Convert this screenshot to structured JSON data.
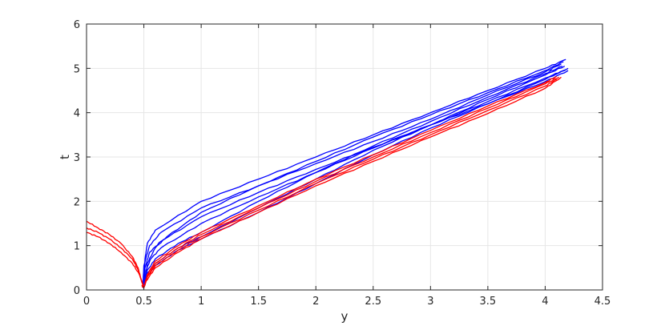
{
  "chart_data": {
    "type": "line",
    "title": "",
    "xlabel": "y",
    "ylabel": "t",
    "xlim": [
      0,
      4.5
    ],
    "ylim": [
      0,
      6
    ],
    "xticks": [
      "0",
      "0.5",
      "1",
      "1.5",
      "2",
      "2.5",
      "3",
      "3.5",
      "4",
      "4.5"
    ],
    "yticks": [
      "0",
      "1",
      "2",
      "3",
      "4",
      "5",
      "6"
    ],
    "grid": true,
    "colors": {
      "blue": "#0000ff",
      "red": "#ff0000",
      "grid": "#e6e6e6",
      "axis": "#262626"
    },
    "series": [
      {
        "color": "blue",
        "x": [
          0.5,
          0.51,
          0.55,
          0.65,
          1.0,
          1.5,
          2.0,
          2.5,
          3.0,
          3.5,
          4.0,
          4.2
        ],
        "y": [
          0.05,
          0.5,
          0.85,
          1.1,
          1.65,
          2.2,
          2.72,
          3.22,
          3.72,
          4.2,
          4.7,
          4.95
        ]
      },
      {
        "color": "blue",
        "x": [
          0.5,
          0.52,
          0.56,
          0.65,
          1.0,
          1.5,
          2.0,
          2.5,
          3.0,
          3.5,
          4.0,
          4.18
        ],
        "y": [
          0.05,
          0.45,
          0.7,
          0.95,
          1.5,
          2.1,
          2.65,
          3.2,
          3.72,
          4.25,
          4.78,
          4.97
        ]
      },
      {
        "color": "blue",
        "x": [
          0.5,
          0.52,
          0.6,
          0.8,
          1.0,
          1.5,
          2.0,
          2.5,
          3.0,
          3.5,
          4.0,
          4.15
        ],
        "y": [
          0.05,
          0.4,
          0.7,
          1.05,
          1.3,
          2.0,
          2.65,
          3.25,
          3.8,
          4.35,
          4.88,
          5.05
        ]
      },
      {
        "color": "blue",
        "x": [
          0.5,
          0.52,
          0.6,
          0.8,
          1.0,
          1.5,
          2.0,
          2.5,
          3.0,
          3.5,
          4.0,
          4.17
        ],
        "y": [
          0.05,
          0.35,
          0.6,
          0.95,
          1.2,
          1.85,
          2.5,
          3.15,
          3.72,
          4.3,
          4.85,
          5.05
        ]
      },
      {
        "color": "blue",
        "x": [
          0.49,
          0.5,
          0.55,
          0.65,
          1.0,
          1.5,
          2.0,
          2.5,
          3.0,
          3.5,
          4.0,
          4.14
        ],
        "y": [
          0.05,
          0.55,
          1.0,
          1.3,
          1.85,
          2.35,
          2.85,
          3.35,
          3.85,
          4.4,
          4.92,
          5.1
        ]
      },
      {
        "color": "blue",
        "x": [
          0.51,
          0.53,
          0.6,
          0.7,
          1.0,
          1.5,
          2.0,
          2.5,
          3.0,
          3.5,
          4.0,
          4.16
        ],
        "y": [
          0.1,
          0.6,
          0.95,
          1.2,
          1.75,
          2.35,
          2.9,
          3.45,
          3.95,
          4.45,
          4.95,
          5.15
        ]
      },
      {
        "color": "blue",
        "x": [
          0.5,
          0.51,
          0.53,
          0.6,
          1.0,
          1.5,
          2.0,
          2.5,
          3.0,
          3.5,
          4.0,
          4.18
        ],
        "y": [
          0.05,
          0.7,
          1.05,
          1.35,
          2.0,
          2.5,
          3.0,
          3.5,
          4.0,
          4.5,
          5.0,
          5.2
        ]
      },
      {
        "color": "blue",
        "x": [
          0.5,
          0.53,
          0.6,
          0.8,
          1.0,
          1.5,
          2.0,
          2.5,
          3.0,
          3.5,
          4.0,
          4.2
        ],
        "y": [
          0.05,
          0.3,
          0.55,
          0.9,
          1.15,
          1.75,
          2.4,
          3.05,
          3.65,
          4.2,
          4.75,
          5.0
        ]
      },
      {
        "color": "red",
        "x": [
          0.0,
          0.1,
          0.2,
          0.3,
          0.4,
          0.45,
          0.48,
          0.5,
          0.52,
          0.6,
          0.8,
          1.0,
          1.5,
          2.0,
          2.5,
          3.0,
          3.5,
          4.0,
          4.1
        ],
        "y": [
          1.55,
          1.4,
          1.25,
          1.05,
          0.75,
          0.5,
          0.2,
          0.05,
          0.25,
          0.55,
          0.9,
          1.2,
          1.8,
          2.4,
          2.95,
          3.5,
          4.05,
          4.6,
          4.75
        ]
      },
      {
        "color": "red",
        "x": [
          0.0,
          0.1,
          0.2,
          0.3,
          0.4,
          0.45,
          0.48,
          0.5,
          0.53,
          0.6,
          0.8,
          1.0,
          1.5,
          2.0,
          2.5,
          3.0,
          3.5,
          4.0,
          4.12
        ],
        "y": [
          1.4,
          1.3,
          1.15,
          0.95,
          0.7,
          0.45,
          0.2,
          0.05,
          0.3,
          0.6,
          0.95,
          1.25,
          1.85,
          2.45,
          3.0,
          3.55,
          4.1,
          4.65,
          4.8
        ]
      },
      {
        "color": "red",
        "x": [
          0.0,
          0.1,
          0.2,
          0.3,
          0.4,
          0.46,
          0.49,
          0.5,
          0.52,
          0.6,
          0.8,
          1.0,
          1.5,
          2.0,
          2.5,
          3.0,
          3.5,
          4.0,
          4.14
        ],
        "y": [
          1.3,
          1.2,
          1.05,
          0.85,
          0.6,
          0.35,
          0.15,
          0.05,
          0.2,
          0.5,
          0.85,
          1.15,
          1.75,
          2.35,
          2.9,
          3.45,
          3.98,
          4.55,
          4.8
        ]
      },
      {
        "color": "red",
        "x": [
          0.48,
          0.5,
          0.53,
          0.6,
          0.8,
          1.0,
          1.5,
          2.0,
          2.5,
          3.0,
          3.5,
          4.0,
          4.1
        ],
        "y": [
          0.1,
          0.05,
          0.35,
          0.65,
          1.0,
          1.3,
          1.9,
          2.5,
          3.05,
          3.6,
          4.15,
          4.68,
          4.82
        ]
      }
    ]
  }
}
